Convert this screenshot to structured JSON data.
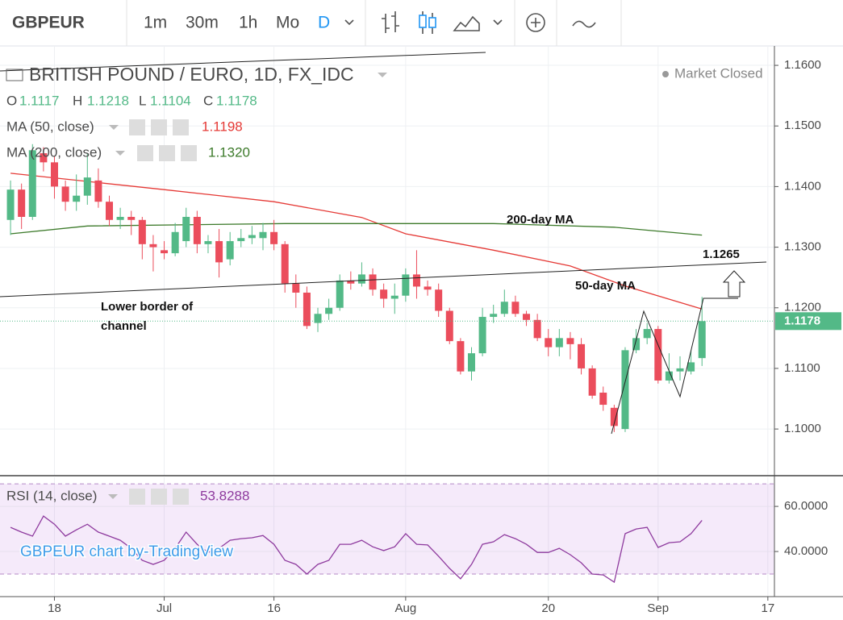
{
  "toolbar": {
    "symbol": "GBPEUR",
    "intervals": [
      "1m",
      "30m",
      "1h",
      "Mo",
      "D"
    ]
  },
  "chart_data": [
    {
      "type": "candlestick",
      "title": "BRITISH POUND / EURO, 1D, FX_IDC",
      "status": "Market Closed",
      "ohlc_letters": [
        "O",
        "H",
        "L",
        "C"
      ],
      "up_color": "#53b987",
      "down_color": "#eb4d5c",
      "open": [
        1.1345,
        1.1395,
        1.135,
        1.1455,
        1.144,
        1.14,
        1.1375,
        1.1385,
        1.141,
        1.1375,
        1.1345,
        1.135,
        1.1345,
        1.1305,
        1.1295,
        1.129,
        1.131,
        1.135,
        1.1305,
        1.131,
        1.128,
        1.131,
        1.1315,
        1.1315,
        1.1325,
        1.1305,
        1.124,
        1.1225,
        1.1175,
        1.119,
        1.12,
        1.1245,
        1.124,
        1.1255,
        1.123,
        1.1215,
        1.122,
        1.1255,
        1.1235,
        1.123,
        1.1195,
        1.1145,
        1.1095,
        1.1125,
        1.1185,
        1.119,
        1.121,
        1.119,
        1.118,
        1.115,
        1.1135,
        1.115,
        1.114,
        1.11,
        1.106,
        1.1035,
        1.1,
        1.113,
        1.115,
        1.1165,
        1.108,
        1.1095,
        1.1095,
        1.1117
      ],
      "high": [
        1.141,
        1.1405,
        1.147,
        1.1465,
        1.145,
        1.141,
        1.142,
        1.1455,
        1.143,
        1.1385,
        1.1365,
        1.136,
        1.135,
        1.132,
        1.131,
        1.134,
        1.1365,
        1.136,
        1.132,
        1.133,
        1.1325,
        1.133,
        1.1335,
        1.134,
        1.1345,
        1.131,
        1.1255,
        1.1235,
        1.12,
        1.1215,
        1.1255,
        1.126,
        1.1275,
        1.1265,
        1.124,
        1.124,
        1.1265,
        1.1295,
        1.1245,
        1.124,
        1.12,
        1.115,
        1.1135,
        1.12,
        1.1205,
        1.123,
        1.122,
        1.1195,
        1.119,
        1.1165,
        1.1165,
        1.116,
        1.115,
        1.1105,
        1.107,
        1.104,
        1.1135,
        1.1165,
        1.1175,
        1.117,
        1.1125,
        1.112,
        1.113,
        1.1218
      ],
      "low": [
        1.132,
        1.133,
        1.1345,
        1.1425,
        1.138,
        1.136,
        1.136,
        1.137,
        1.1365,
        1.1335,
        1.133,
        1.132,
        1.128,
        1.126,
        1.128,
        1.1285,
        1.13,
        1.129,
        1.129,
        1.125,
        1.127,
        1.13,
        1.1305,
        1.1295,
        1.1295,
        1.1225,
        1.12,
        1.1165,
        1.116,
        1.118,
        1.1195,
        1.123,
        1.1235,
        1.122,
        1.12,
        1.119,
        1.121,
        1.1215,
        1.122,
        1.1185,
        1.114,
        1.109,
        1.108,
        1.112,
        1.1175,
        1.1185,
        1.1185,
        1.117,
        1.1145,
        1.112,
        1.112,
        1.1115,
        1.109,
        1.105,
        1.103,
        1.0995,
        1.0995,
        1.1125,
        1.114,
        1.1075,
        1.1075,
        1.108,
        1.109,
        1.1104
      ],
      "close": [
        1.1395,
        1.135,
        1.146,
        1.144,
        1.14,
        1.1375,
        1.1385,
        1.1415,
        1.1375,
        1.1345,
        1.135,
        1.1345,
        1.1305,
        1.13,
        1.129,
        1.1325,
        1.135,
        1.1305,
        1.131,
        1.1275,
        1.131,
        1.1315,
        1.132,
        1.1325,
        1.1305,
        1.124,
        1.1225,
        1.117,
        1.119,
        1.12,
        1.1245,
        1.124,
        1.1255,
        1.123,
        1.1215,
        1.122,
        1.1255,
        1.1235,
        1.123,
        1.1195,
        1.1145,
        1.1095,
        1.1125,
        1.1185,
        1.119,
        1.121,
        1.119,
        1.118,
        1.115,
        1.1135,
        1.115,
        1.114,
        1.11,
        1.1055,
        1.104,
        1.1005,
        1.113,
        1.115,
        1.1165,
        1.108,
        1.1095,
        1.11,
        1.111,
        1.1178
      ],
      "series": [
        {
          "name": "MA (50, close)",
          "color": "#e53935",
          "x": [
            0,
            14,
            24,
            32,
            36,
            44,
            51,
            56,
            63
          ],
          "values": [
            1.1422,
            1.1395,
            1.1375,
            1.1349,
            1.1322,
            1.1295,
            1.1269,
            1.1236,
            1.1198
          ]
        },
        {
          "name": "MA (200, close)",
          "color": "#3c7a2a",
          "x": [
            0,
            7,
            25,
            44,
            55,
            63
          ],
          "values": [
            1.1322,
            1.1335,
            1.1339,
            1.1339,
            1.1333,
            1.132
          ],
          "value_labels": [
            null,
            null,
            null,
            null,
            null,
            "1.1320"
          ]
        }
      ],
      "xlim": [
        -0.96,
        69.6
      ],
      "xticks": [
        {
          "value": 4,
          "label": "18"
        },
        {
          "value": 14,
          "label": "Jul"
        },
        {
          "value": 24,
          "label": "16"
        },
        {
          "value": 36,
          "label": "Aug"
        },
        {
          "value": 49,
          "label": "20"
        },
        {
          "value": 59,
          "label": "Sep"
        },
        {
          "value": 69,
          "label": "17"
        }
      ],
      "ylim": [
        1.0923,
        1.1632
      ],
      "yticks": [
        {
          "value": 1.1,
          "label": "1.1000"
        },
        {
          "value": 1.11,
          "label": "1.1100"
        },
        {
          "value": 1.12,
          "label": "1.1200"
        },
        {
          "value": 1.13,
          "label": "1.1300"
        },
        {
          "value": 1.14,
          "label": "1.1400"
        },
        {
          "value": 1.15,
          "label": "1.1500"
        },
        {
          "value": 1.16,
          "label": "1.1600"
        }
      ],
      "grid": true,
      "annotations": [
        {
          "text": "200-day MA"
        },
        {
          "text": "50-day MA"
        },
        {
          "text": "1.1265"
        },
        {
          "lines": [
            "Lower border of",
            "channel"
          ]
        }
      ]
    },
    {
      "type": "line",
      "title": "RSI (14, close)",
      "color": "#8e3a9e",
      "values": [
        50.7,
        48.6,
        46.8,
        55.7,
        52.1,
        46.8,
        49.6,
        52.1,
        48.6,
        46.8,
        45.0,
        41.4,
        36.1,
        34.3,
        36.1,
        41.4,
        48.6,
        43.2,
        39.6,
        41.4,
        45.0,
        45.7,
        46.1,
        47.1,
        43.2,
        36.1,
        34.3,
        30.0,
        34.3,
        36.1,
        43.2,
        43.2,
        45.0,
        42.1,
        40.4,
        42.1,
        47.9,
        43.2,
        42.9,
        37.9,
        32.5,
        27.9,
        34.3,
        43.2,
        44.3,
        47.5,
        45.7,
        43.2,
        39.6,
        39.6,
        41.4,
        38.6,
        35.0,
        30.0,
        29.6,
        26.4,
        47.9,
        50.0,
        50.7,
        41.8,
        43.9,
        44.3,
        47.9,
        53.8288
      ],
      "ylim": [
        20,
        72.9
      ],
      "yticks": [
        {
          "value": 40,
          "label": "40.0000"
        },
        {
          "value": 60,
          "label": "60.0000"
        }
      ],
      "band": [
        30,
        70
      ],
      "watermark": "GBPEUR chart by-TradingView"
    }
  ]
}
